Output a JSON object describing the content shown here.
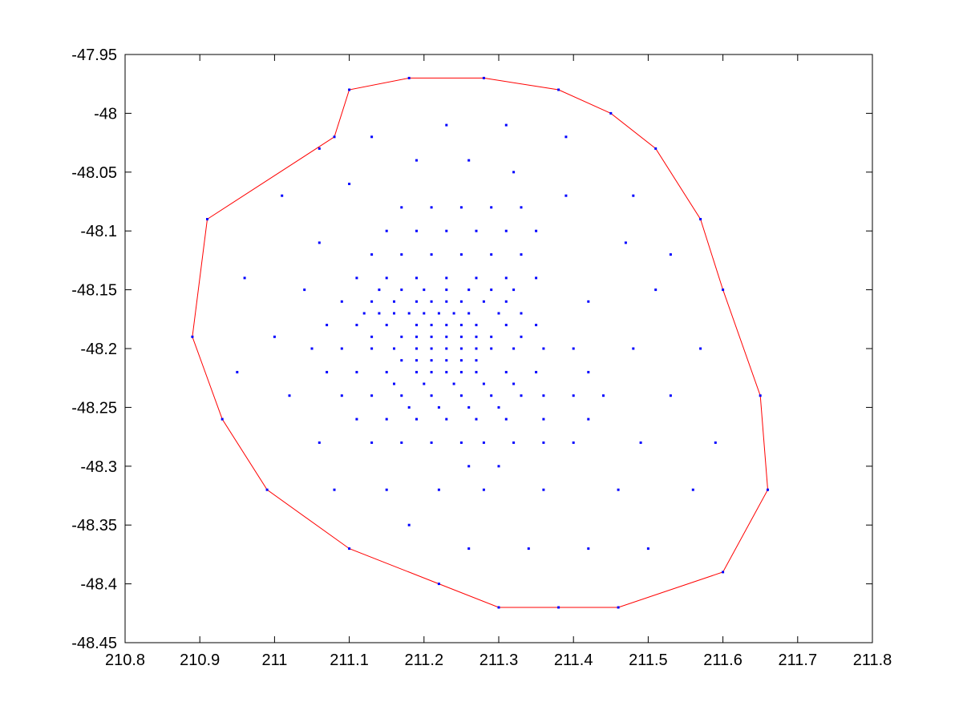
{
  "chart_data": {
    "type": "scatter",
    "title": "",
    "xlabel": "",
    "ylabel": "",
    "xlim": [
      210.8,
      211.8
    ],
    "ylim": [
      -48.45,
      -47.95
    ],
    "grid": false,
    "x_ticks": [
      210.8,
      210.9,
      211.0,
      211.1,
      211.2,
      211.3,
      211.4,
      211.5,
      211.6,
      211.7,
      211.8
    ],
    "x_tick_labels": [
      "210.8",
      "210.9",
      "211",
      "211.1",
      "211.2",
      "211.3",
      "211.4",
      "211.5",
      "211.6",
      "211.7",
      "211.8"
    ],
    "y_ticks": [
      -47.95,
      -48.0,
      -48.05,
      -48.1,
      -48.15,
      -48.2,
      -48.25,
      -48.3,
      -48.35,
      -48.4,
      -48.45
    ],
    "y_tick_labels": [
      "-47.95",
      "-48",
      "-48.05",
      "-48.1",
      "-48.15",
      "-48.2",
      "-48.25",
      "-48.3",
      "-48.35",
      "-48.4",
      "-48.45"
    ],
    "colors": {
      "points": "#0000ff",
      "hull": "#ff0000",
      "axes": "#000000"
    },
    "series": [
      {
        "kind": "points",
        "points": [
          [
            211.18,
            -47.97
          ],
          [
            211.28,
            -47.97
          ],
          [
            211.1,
            -47.98
          ],
          [
            211.38,
            -47.98
          ],
          [
            211.45,
            -48.0
          ],
          [
            211.23,
            -48.01
          ],
          [
            211.31,
            -48.01
          ],
          [
            211.08,
            -48.02
          ],
          [
            211.13,
            -48.02
          ],
          [
            211.39,
            -48.02
          ],
          [
            211.06,
            -48.03
          ],
          [
            211.51,
            -48.03
          ],
          [
            211.19,
            -48.04
          ],
          [
            211.26,
            -48.04
          ],
          [
            211.32,
            -48.05
          ],
          [
            211.1,
            -48.06
          ],
          [
            211.01,
            -48.07
          ],
          [
            211.39,
            -48.07
          ],
          [
            211.48,
            -48.07
          ],
          [
            211.17,
            -48.08
          ],
          [
            211.21,
            -48.08
          ],
          [
            211.25,
            -48.08
          ],
          [
            211.29,
            -48.08
          ],
          [
            211.33,
            -48.08
          ],
          [
            210.91,
            -48.09
          ],
          [
            211.57,
            -48.09
          ],
          [
            211.15,
            -48.1
          ],
          [
            211.19,
            -48.1
          ],
          [
            211.23,
            -48.1
          ],
          [
            211.27,
            -48.1
          ],
          [
            211.31,
            -48.1
          ],
          [
            211.35,
            -48.1
          ],
          [
            211.06,
            -48.11
          ],
          [
            211.47,
            -48.11
          ],
          [
            211.13,
            -48.12
          ],
          [
            211.17,
            -48.12
          ],
          [
            211.21,
            -48.12
          ],
          [
            211.25,
            -48.12
          ],
          [
            211.29,
            -48.12
          ],
          [
            211.33,
            -48.12
          ],
          [
            211.53,
            -48.12
          ],
          [
            210.96,
            -48.14
          ],
          [
            211.11,
            -48.14
          ],
          [
            211.15,
            -48.14
          ],
          [
            211.19,
            -48.14
          ],
          [
            211.23,
            -48.14
          ],
          [
            211.27,
            -48.14
          ],
          [
            211.31,
            -48.14
          ],
          [
            211.35,
            -48.14
          ],
          [
            211.04,
            -48.15
          ],
          [
            211.14,
            -48.15
          ],
          [
            211.17,
            -48.15
          ],
          [
            211.2,
            -48.15
          ],
          [
            211.23,
            -48.15
          ],
          [
            211.26,
            -48.15
          ],
          [
            211.29,
            -48.15
          ],
          [
            211.32,
            -48.15
          ],
          [
            211.51,
            -48.15
          ],
          [
            211.6,
            -48.15
          ],
          [
            211.09,
            -48.16
          ],
          [
            211.13,
            -48.16
          ],
          [
            211.16,
            -48.16
          ],
          [
            211.19,
            -48.16
          ],
          [
            211.21,
            -48.16
          ],
          [
            211.23,
            -48.16
          ],
          [
            211.25,
            -48.16
          ],
          [
            211.28,
            -48.16
          ],
          [
            211.31,
            -48.16
          ],
          [
            211.42,
            -48.16
          ],
          [
            211.12,
            -48.17
          ],
          [
            211.2,
            -48.17
          ],
          [
            211.22,
            -48.17
          ],
          [
            211.24,
            -48.17
          ],
          [
            211.26,
            -48.17
          ],
          [
            211.3,
            -48.17
          ],
          [
            211.33,
            -48.17
          ],
          [
            211.14,
            -48.17
          ],
          [
            211.16,
            -48.17
          ],
          [
            211.18,
            -48.17
          ],
          [
            211.07,
            -48.18
          ],
          [
            211.11,
            -48.18
          ],
          [
            211.15,
            -48.18
          ],
          [
            211.19,
            -48.18
          ],
          [
            211.21,
            -48.18
          ],
          [
            211.23,
            -48.18
          ],
          [
            211.25,
            -48.18
          ],
          [
            211.27,
            -48.18
          ],
          [
            211.31,
            -48.18
          ],
          [
            211.35,
            -48.18
          ],
          [
            211.13,
            -48.19
          ],
          [
            211.17,
            -48.19
          ],
          [
            211.19,
            -48.19
          ],
          [
            211.21,
            -48.19
          ],
          [
            211.23,
            -48.19
          ],
          [
            211.25,
            -48.19
          ],
          [
            211.27,
            -48.19
          ],
          [
            211.29,
            -48.19
          ],
          [
            211.33,
            -48.19
          ],
          [
            210.89,
            -48.19
          ],
          [
            211.0,
            -48.19
          ],
          [
            211.05,
            -48.2
          ],
          [
            211.09,
            -48.2
          ],
          [
            211.13,
            -48.2
          ],
          [
            211.16,
            -48.2
          ],
          [
            211.19,
            -48.2
          ],
          [
            211.21,
            -48.2
          ],
          [
            211.23,
            -48.2
          ],
          [
            211.25,
            -48.2
          ],
          [
            211.27,
            -48.2
          ],
          [
            211.29,
            -48.2
          ],
          [
            211.32,
            -48.2
          ],
          [
            211.36,
            -48.2
          ],
          [
            211.4,
            -48.2
          ],
          [
            211.48,
            -48.2
          ],
          [
            211.57,
            -48.2
          ],
          [
            211.17,
            -48.21
          ],
          [
            211.19,
            -48.21
          ],
          [
            211.21,
            -48.21
          ],
          [
            211.23,
            -48.21
          ],
          [
            211.25,
            -48.21
          ],
          [
            211.27,
            -48.21
          ],
          [
            210.95,
            -48.22
          ],
          [
            211.07,
            -48.22
          ],
          [
            211.11,
            -48.22
          ],
          [
            211.15,
            -48.22
          ],
          [
            211.19,
            -48.22
          ],
          [
            211.21,
            -48.22
          ],
          [
            211.23,
            -48.22
          ],
          [
            211.25,
            -48.22
          ],
          [
            211.27,
            -48.22
          ],
          [
            211.31,
            -48.22
          ],
          [
            211.35,
            -48.22
          ],
          [
            211.42,
            -48.22
          ],
          [
            211.16,
            -48.23
          ],
          [
            211.2,
            -48.23
          ],
          [
            211.24,
            -48.23
          ],
          [
            211.28,
            -48.23
          ],
          [
            211.32,
            -48.23
          ],
          [
            211.02,
            -48.24
          ],
          [
            211.09,
            -48.24
          ],
          [
            211.13,
            -48.24
          ],
          [
            211.17,
            -48.24
          ],
          [
            211.21,
            -48.24
          ],
          [
            211.25,
            -48.24
          ],
          [
            211.29,
            -48.24
          ],
          [
            211.33,
            -48.24
          ],
          [
            211.36,
            -48.24
          ],
          [
            211.4,
            -48.24
          ],
          [
            211.44,
            -48.24
          ],
          [
            211.53,
            -48.24
          ],
          [
            211.65,
            -48.24
          ],
          [
            211.18,
            -48.25
          ],
          [
            211.22,
            -48.25
          ],
          [
            211.26,
            -48.25
          ],
          [
            211.3,
            -48.25
          ],
          [
            210.93,
            -48.26
          ],
          [
            211.11,
            -48.26
          ],
          [
            211.15,
            -48.26
          ],
          [
            211.19,
            -48.26
          ],
          [
            211.23,
            -48.26
          ],
          [
            211.27,
            -48.26
          ],
          [
            211.31,
            -48.26
          ],
          [
            211.36,
            -48.26
          ],
          [
            211.42,
            -48.26
          ],
          [
            211.06,
            -48.28
          ],
          [
            211.13,
            -48.28
          ],
          [
            211.17,
            -48.28
          ],
          [
            211.21,
            -48.28
          ],
          [
            211.25,
            -48.28
          ],
          [
            211.28,
            -48.28
          ],
          [
            211.32,
            -48.28
          ],
          [
            211.36,
            -48.28
          ],
          [
            211.4,
            -48.28
          ],
          [
            211.49,
            -48.28
          ],
          [
            211.59,
            -48.28
          ],
          [
            211.26,
            -48.3
          ],
          [
            211.3,
            -48.3
          ],
          [
            210.99,
            -48.32
          ],
          [
            211.08,
            -48.32
          ],
          [
            211.15,
            -48.32
          ],
          [
            211.22,
            -48.32
          ],
          [
            211.28,
            -48.32
          ],
          [
            211.36,
            -48.32
          ],
          [
            211.46,
            -48.32
          ],
          [
            211.56,
            -48.32
          ],
          [
            211.66,
            -48.32
          ],
          [
            211.18,
            -48.35
          ],
          [
            211.1,
            -48.37
          ],
          [
            211.26,
            -48.37
          ],
          [
            211.34,
            -48.37
          ],
          [
            211.42,
            -48.37
          ],
          [
            211.5,
            -48.37
          ],
          [
            211.22,
            -48.4
          ],
          [
            211.6,
            -48.39
          ],
          [
            211.3,
            -48.42
          ],
          [
            211.38,
            -48.42
          ],
          [
            211.46,
            -48.42
          ]
        ]
      },
      {
        "kind": "hull",
        "points": [
          [
            211.18,
            -47.97
          ],
          [
            211.28,
            -47.97
          ],
          [
            211.38,
            -47.98
          ],
          [
            211.45,
            -48.0
          ],
          [
            211.51,
            -48.03
          ],
          [
            211.57,
            -48.09
          ],
          [
            211.6,
            -48.15
          ],
          [
            211.65,
            -48.24
          ],
          [
            211.66,
            -48.32
          ],
          [
            211.6,
            -48.39
          ],
          [
            211.46,
            -48.42
          ],
          [
            211.38,
            -48.42
          ],
          [
            211.3,
            -48.42
          ],
          [
            211.22,
            -48.4
          ],
          [
            211.1,
            -48.37
          ],
          [
            210.99,
            -48.32
          ],
          [
            210.93,
            -48.26
          ],
          [
            210.89,
            -48.19
          ],
          [
            210.91,
            -48.09
          ],
          [
            211.08,
            -48.02
          ],
          [
            211.1,
            -47.98
          ],
          [
            211.18,
            -47.97
          ]
        ]
      }
    ]
  }
}
